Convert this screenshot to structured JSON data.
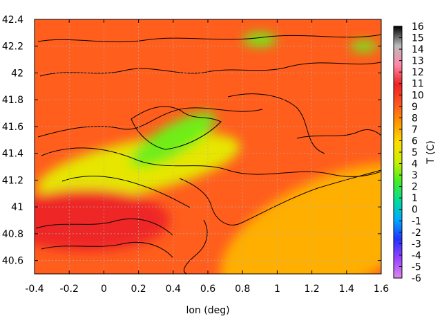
{
  "chart_data": {
    "type": "heatmap",
    "title": "",
    "xlabel": "lon (deg)",
    "ylabel": "",
    "colorbar_label": "T (C)",
    "xlim": [
      -0.4,
      1.6
    ],
    "ylim": [
      40.5,
      42.4
    ],
    "x_ticks": [
      "-0.4",
      "-0.2",
      "0",
      "0.2",
      "0.4",
      "0.6",
      "0.8",
      "1",
      "1.2",
      "1.4",
      "1.6"
    ],
    "y_ticks": [
      "40.6",
      "40.8",
      "41",
      "41.2",
      "41.4",
      "41.6",
      "41.8",
      "42",
      "42.2",
      "42.4"
    ],
    "colorbar_range": [
      -6,
      16
    ],
    "colorbar_ticks": [
      "16",
      "15",
      "14",
      "13",
      "12",
      "11",
      "10",
      "9",
      "8",
      "7",
      "6",
      "5",
      "4",
      "3",
      "2",
      "1",
      "0",
      "-1",
      "-2",
      "-3",
      "-4",
      "-5",
      "-6"
    ],
    "grid": true,
    "colorbar_colors": [
      "#dd88ee",
      "#9944ff",
      "#2233ff",
      "#00aaff",
      "#00dd99",
      "#44ee22",
      "#ccee00",
      "#ffdd00",
      "#ff9900",
      "#ff5522",
      "#ee2222",
      "#ff88aa",
      "#bbbbbb",
      "#000000"
    ],
    "regions": [
      {
        "name": "background",
        "lon": 0.6,
        "lat": 41.4,
        "T": 9
      },
      {
        "name": "cold-band",
        "lon": 0.2,
        "lat": 41.3,
        "T": 5
      },
      {
        "name": "cold-core",
        "lon": 0.4,
        "lat": 41.5,
        "T": 3
      },
      {
        "name": "warm-southeast",
        "lon": 1.3,
        "lat": 40.8,
        "T": 7
      },
      {
        "name": "warm-southwest",
        "lon": -0.1,
        "lat": 40.9,
        "T": 11
      },
      {
        "name": "mountain-north",
        "lon": 0.9,
        "lat": 42.25,
        "T": 3
      },
      {
        "name": "mountain-northeast",
        "lon": 1.5,
        "lat": 42.2,
        "T": 3
      }
    ]
  }
}
